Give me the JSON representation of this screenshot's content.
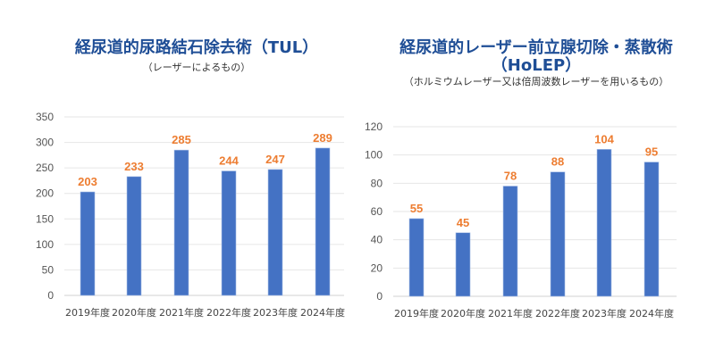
{
  "chart_data": [
    {
      "type": "bar",
      "title": "経尿道的尿路結石除去術（TUL）",
      "subtitle": "（レーザーによるもの）",
      "categories": [
        "2019年度",
        "2020年度",
        "2021年度",
        "2022年度",
        "2023年度",
        "2024年度"
      ],
      "values": [
        203,
        233,
        285,
        244,
        247,
        289
      ],
      "ylim": [
        0,
        350
      ],
      "yticks": [
        0,
        50,
        100,
        150,
        200,
        250,
        300,
        350
      ],
      "grid": true,
      "bar_color": "#4472c4",
      "label_color": "#ed7d31"
    },
    {
      "type": "bar",
      "title": "経尿道的レーザー前立腺切除・蒸散術",
      "title_line2": "（HoLEP）",
      "subtitle": "（ホルミウムレーザー又は倍周波数レーザーを用いるもの）",
      "categories": [
        "2019年度",
        "2020年度",
        "2021年度",
        "2022年度",
        "2023年度",
        "2024年度"
      ],
      "values": [
        55,
        45,
        78,
        88,
        104,
        95
      ],
      "ylim": [
        0,
        120
      ],
      "yticks": [
        0,
        20,
        40,
        60,
        80,
        100,
        120
      ],
      "grid": true,
      "bar_color": "#4472c4",
      "label_color": "#ed7d31"
    }
  ]
}
